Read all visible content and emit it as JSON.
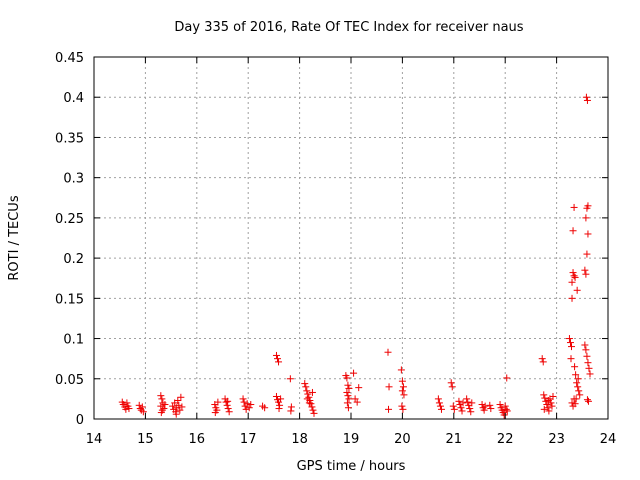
{
  "chart_data": {
    "type": "scatter",
    "title": "Day 335 of 2016, Rate Of TEC Index for receiver naus",
    "xlabel": "GPS time / hours",
    "ylabel": "ROTI / TECUs",
    "xlim": [
      14,
      24
    ],
    "ylim": [
      0,
      0.45
    ],
    "xticks": [
      "14",
      "15",
      "16",
      "17",
      "18",
      "19",
      "20",
      "21",
      "22",
      "23",
      "24"
    ],
    "yticks": [
      "0",
      "0.05",
      "0.1",
      "0.15",
      "0.2",
      "0.25",
      "0.3",
      "0.35",
      "0.4",
      "0.45"
    ],
    "grid": true,
    "marker": "+",
    "color": "#ee0000",
    "series": [
      {
        "name": "ROTI",
        "points": [
          [
            14.55,
            0.021
          ],
          [
            14.57,
            0.018
          ],
          [
            14.6,
            0.015
          ],
          [
            14.62,
            0.012
          ],
          [
            14.64,
            0.02
          ],
          [
            14.66,
            0.016
          ],
          [
            14.68,
            0.013
          ],
          [
            14.88,
            0.017
          ],
          [
            14.9,
            0.013
          ],
          [
            14.92,
            0.011
          ],
          [
            14.94,
            0.015
          ],
          [
            14.96,
            0.009
          ],
          [
            15.3,
            0.029
          ],
          [
            15.32,
            0.025
          ],
          [
            15.34,
            0.02
          ],
          [
            15.3,
            0.016
          ],
          [
            15.36,
            0.013
          ],
          [
            15.33,
            0.011
          ],
          [
            15.38,
            0.018
          ],
          [
            15.31,
            0.008
          ],
          [
            15.53,
            0.016
          ],
          [
            15.55,
            0.012
          ],
          [
            15.57,
            0.02
          ],
          [
            15.59,
            0.009
          ],
          [
            15.61,
            0.014
          ],
          [
            15.63,
            0.023
          ],
          [
            15.65,
            0.017
          ],
          [
            15.67,
            0.011
          ],
          [
            15.69,
            0.027
          ],
          [
            15.71,
            0.015
          ],
          [
            15.6,
            0.006
          ],
          [
            16.35,
            0.018
          ],
          [
            16.37,
            0.014
          ],
          [
            16.39,
            0.011
          ],
          [
            16.41,
            0.021
          ],
          [
            16.36,
            0.008
          ],
          [
            16.55,
            0.025
          ],
          [
            16.57,
            0.021
          ],
          [
            16.59,
            0.017
          ],
          [
            16.61,
            0.013
          ],
          [
            16.63,
            0.009
          ],
          [
            16.6,
            0.022
          ],
          [
            16.9,
            0.025
          ],
          [
            16.92,
            0.021
          ],
          [
            16.94,
            0.016
          ],
          [
            16.96,
            0.012
          ],
          [
            16.98,
            0.019
          ],
          [
            17.02,
            0.014
          ],
          [
            17.05,
            0.018
          ],
          [
            17.28,
            0.016
          ],
          [
            17.32,
            0.014
          ],
          [
            17.55,
            0.079
          ],
          [
            17.57,
            0.075
          ],
          [
            17.59,
            0.071
          ],
          [
            17.55,
            0.028
          ],
          [
            17.57,
            0.024
          ],
          [
            17.59,
            0.021
          ],
          [
            17.61,
            0.017
          ],
          [
            17.63,
            0.025
          ],
          [
            17.6,
            0.013
          ],
          [
            17.82,
            0.05
          ],
          [
            17.84,
            0.015
          ],
          [
            17.83,
            0.01
          ],
          [
            18.1,
            0.044
          ],
          [
            18.12,
            0.04
          ],
          [
            18.14,
            0.035
          ],
          [
            18.16,
            0.031
          ],
          [
            18.18,
            0.027
          ],
          [
            18.2,
            0.023
          ],
          [
            18.22,
            0.019
          ],
          [
            18.24,
            0.015
          ],
          [
            18.26,
            0.011
          ],
          [
            18.28,
            0.007
          ],
          [
            18.15,
            0.025
          ],
          [
            18.19,
            0.02
          ],
          [
            18.25,
            0.033
          ],
          [
            18.9,
            0.054
          ],
          [
            18.92,
            0.051
          ],
          [
            18.94,
            0.042
          ],
          [
            18.96,
            0.038
          ],
          [
            18.92,
            0.033
          ],
          [
            18.94,
            0.029
          ],
          [
            18.96,
            0.025
          ],
          [
            18.93,
            0.02
          ],
          [
            18.95,
            0.014
          ],
          [
            19.05,
            0.057
          ],
          [
            19.08,
            0.025
          ],
          [
            19.12,
            0.021
          ],
          [
            19.15,
            0.039
          ],
          [
            19.72,
            0.083
          ],
          [
            19.74,
            0.04
          ],
          [
            19.73,
            0.012
          ],
          [
            19.98,
            0.061
          ],
          [
            20.0,
            0.047
          ],
          [
            20.02,
            0.04
          ],
          [
            20.0,
            0.035
          ],
          [
            20.03,
            0.03
          ],
          [
            19.99,
            0.016
          ],
          [
            20.01,
            0.012
          ],
          [
            20.7,
            0.025
          ],
          [
            20.72,
            0.02
          ],
          [
            20.74,
            0.016
          ],
          [
            20.76,
            0.012
          ],
          [
            20.95,
            0.045
          ],
          [
            20.97,
            0.04
          ],
          [
            20.99,
            0.016
          ],
          [
            21.01,
            0.012
          ],
          [
            21.1,
            0.022
          ],
          [
            21.12,
            0.018
          ],
          [
            21.14,
            0.014
          ],
          [
            21.16,
            0.01
          ],
          [
            21.18,
            0.02
          ],
          [
            21.25,
            0.025
          ],
          [
            21.27,
            0.021
          ],
          [
            21.29,
            0.017
          ],
          [
            21.31,
            0.013
          ],
          [
            21.33,
            0.009
          ],
          [
            21.35,
            0.02
          ],
          [
            21.55,
            0.018
          ],
          [
            21.57,
            0.014
          ],
          [
            21.59,
            0.011
          ],
          [
            21.61,
            0.016
          ],
          [
            21.7,
            0.017
          ],
          [
            21.72,
            0.013
          ],
          [
            21.9,
            0.018
          ],
          [
            21.92,
            0.014
          ],
          [
            21.94,
            0.011
          ],
          [
            21.96,
            0.008
          ],
          [
            21.98,
            0.005
          ],
          [
            22.0,
            0.016
          ],
          [
            22.02,
            0.012
          ],
          [
            22.04,
            0.01
          ],
          [
            22.03,
            0.051
          ],
          [
            22.72,
            0.075
          ],
          [
            22.74,
            0.071
          ],
          [
            22.75,
            0.03
          ],
          [
            22.77,
            0.026
          ],
          [
            22.79,
            0.022
          ],
          [
            22.81,
            0.018
          ],
          [
            22.83,
            0.014
          ],
          [
            22.85,
            0.01
          ],
          [
            22.87,
            0.025
          ],
          [
            22.89,
            0.02
          ],
          [
            22.91,
            0.016
          ],
          [
            22.93,
            0.028
          ],
          [
            22.76,
            0.012
          ],
          [
            22.84,
            0.023
          ],
          [
            23.25,
            0.1
          ],
          [
            23.27,
            0.095
          ],
          [
            23.29,
            0.09
          ],
          [
            23.28,
            0.075
          ],
          [
            23.3,
            0.02
          ],
          [
            23.32,
            0.016
          ],
          [
            23.34,
            0.025
          ],
          [
            23.36,
            0.019
          ],
          [
            23.3,
            0.17
          ],
          [
            23.32,
            0.182
          ],
          [
            23.34,
            0.178
          ],
          [
            23.3,
            0.15
          ],
          [
            23.32,
            0.234
          ],
          [
            23.34,
            0.263
          ],
          [
            23.36,
            0.176
          ],
          [
            23.4,
            0.16
          ],
          [
            23.35,
            0.065
          ],
          [
            23.37,
            0.055
          ],
          [
            23.39,
            0.045
          ],
          [
            23.41,
            0.04
          ],
          [
            23.43,
            0.035
          ],
          [
            23.45,
            0.03
          ],
          [
            23.38,
            0.025
          ],
          [
            23.42,
            0.05
          ],
          [
            23.55,
            0.185
          ],
          [
            23.57,
            0.18
          ],
          [
            23.59,
            0.205
          ],
          [
            23.61,
            0.23
          ],
          [
            23.57,
            0.25
          ],
          [
            23.59,
            0.262
          ],
          [
            23.61,
            0.265
          ],
          [
            23.58,
            0.4
          ],
          [
            23.6,
            0.396
          ],
          [
            23.55,
            0.092
          ],
          [
            23.57,
            0.086
          ],
          [
            23.59,
            0.078
          ],
          [
            23.61,
            0.07
          ],
          [
            23.63,
            0.063
          ],
          [
            23.65,
            0.056
          ],
          [
            23.6,
            0.024
          ],
          [
            23.62,
            0.022
          ]
        ]
      }
    ]
  }
}
